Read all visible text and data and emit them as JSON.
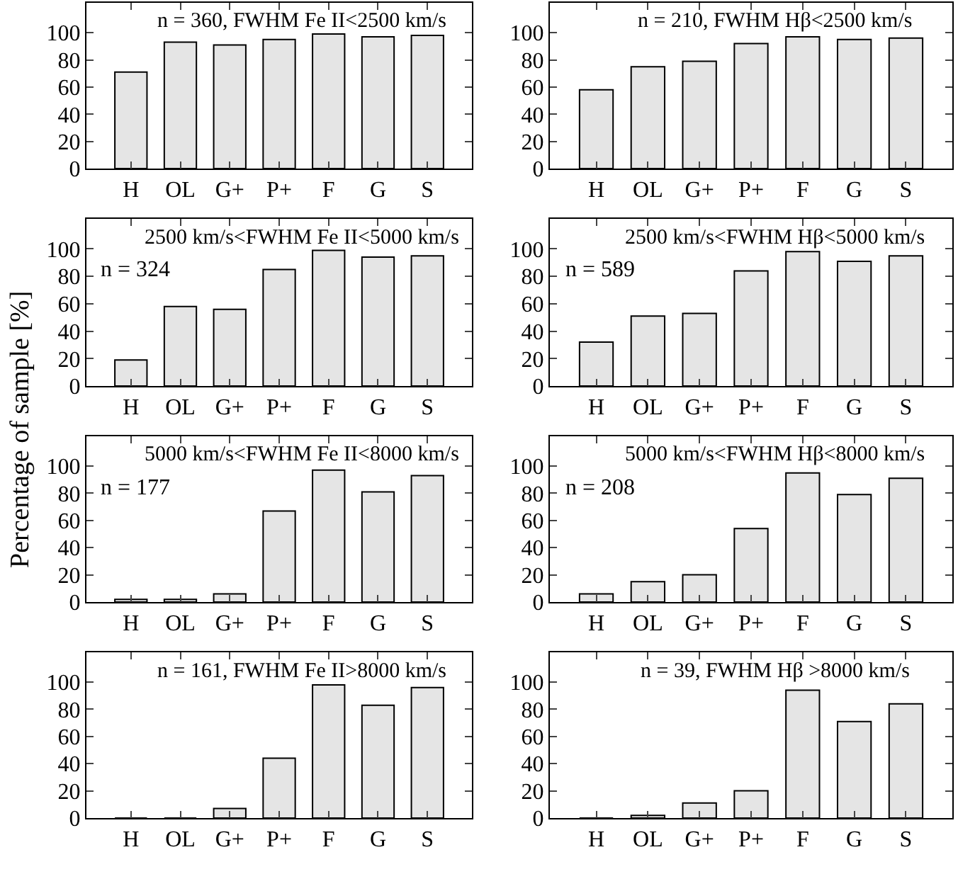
{
  "chart_data": [
    {
      "type": "bar",
      "title": "n = 360, FWHM Fe II<2500 km/s",
      "ylabel": "Percentage of sample [%]",
      "categories": [
        "H",
        "OL",
        "G+",
        "P+",
        "F",
        "G",
        "S"
      ],
      "values": [
        71,
        93,
        91,
        95,
        99,
        97,
        98
      ],
      "color": "#e5e5e5",
      "ylim": [
        0,
        122
      ],
      "yticks": [
        0,
        20,
        40,
        60,
        80,
        100
      ]
    },
    {
      "type": "bar",
      "title": "n = 210, FWHM Hβ<2500 km/s",
      "categories": [
        "H",
        "OL",
        "G+",
        "P+",
        "F",
        "G",
        "S"
      ],
      "values": [
        58,
        75,
        79,
        92,
        97,
        95,
        96
      ],
      "color": "#e5e5e5",
      "ylim": [
        0,
        122
      ],
      "yticks": [
        0,
        20,
        40,
        60,
        80,
        100
      ]
    },
    {
      "type": "bar",
      "title": "2500 km/s<FWHM Fe II<5000 km/s",
      "annotations": [
        "n = 324"
      ],
      "categories": [
        "H",
        "OL",
        "G+",
        "P+",
        "F",
        "G",
        "S"
      ],
      "values": [
        19,
        58,
        56,
        85,
        99,
        94,
        95
      ],
      "color": "#e5e5e5",
      "ylim": [
        0,
        122
      ],
      "yticks": [
        0,
        20,
        40,
        60,
        80,
        100
      ]
    },
    {
      "type": "bar",
      "title": "2500 km/s<FWHM Hβ<5000 km/s",
      "annotations": [
        "n = 589"
      ],
      "categories": [
        "H",
        "OL",
        "G+",
        "P+",
        "F",
        "G",
        "S"
      ],
      "values": [
        32,
        51,
        53,
        84,
        98,
        91,
        95
      ],
      "color": "#e5e5e5",
      "ylim": [
        0,
        122
      ],
      "yticks": [
        0,
        20,
        40,
        60,
        80,
        100
      ]
    },
    {
      "type": "bar",
      "title": "5000 km/s<FWHM Fe II<8000 km/s",
      "annotations": [
        "n = 177"
      ],
      "categories": [
        "H",
        "OL",
        "G+",
        "P+",
        "F",
        "G",
        "S"
      ],
      "values": [
        2,
        2,
        6,
        67,
        97,
        81,
        93
      ],
      "color": "#e5e5e5",
      "ylim": [
        0,
        122
      ],
      "yticks": [
        0,
        20,
        40,
        60,
        80,
        100
      ]
    },
    {
      "type": "bar",
      "title": "5000 km/s<FWHM Hβ<8000 km/s",
      "annotations": [
        "n = 208"
      ],
      "categories": [
        "H",
        "OL",
        "G+",
        "P+",
        "F",
        "G",
        "S"
      ],
      "values": [
        6,
        15,
        20,
        54,
        95,
        79,
        91
      ],
      "color": "#e5e5e5",
      "ylim": [
        0,
        122
      ],
      "yticks": [
        0,
        20,
        40,
        60,
        80,
        100
      ]
    },
    {
      "type": "bar",
      "title": "n = 161, FWHM Fe II>8000 km/s",
      "categories": [
        "H",
        "OL",
        "G+",
        "P+",
        "F",
        "G",
        "S"
      ],
      "values": [
        0,
        0,
        7,
        44,
        98,
        83,
        96
      ],
      "color": "#e5e5e5",
      "ylim": [
        0,
        122
      ],
      "yticks": [
        0,
        20,
        40,
        60,
        80,
        100
      ]
    },
    {
      "type": "bar",
      "title": "n = 39, FWHM Hβ >8000 km/s",
      "categories": [
        "H",
        "OL",
        "G+",
        "P+",
        "F",
        "G",
        "S"
      ],
      "values": [
        0,
        2,
        11,
        20,
        94,
        71,
        84
      ],
      "color": "#e5e5e5",
      "ylim": [
        0,
        122
      ],
      "yticks": [
        0,
        20,
        40,
        60,
        80,
        100
      ]
    }
  ]
}
